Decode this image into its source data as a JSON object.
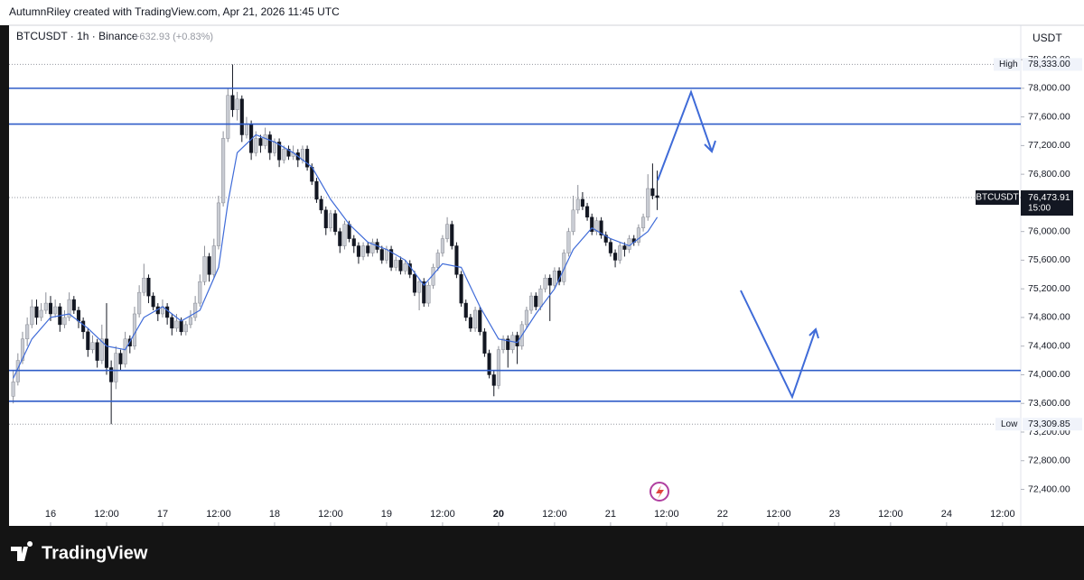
{
  "chart_data": {
    "type": "candlestick",
    "title": "AutumnRiley created with TradingView.com, Apr 21, 2026 11:45 UTC",
    "legend_symbol": "BTCUSDT · 1h · Binance",
    "legend_change": "+632.93 (+0.83%)",
    "currency": "USDT",
    "brand": "TradingView",
    "up_color": "#c9ccd3",
    "down_color": "#131722",
    "ma_color": "#3f6bd8",
    "level_color": "#2f5cc8",
    "xlim": [
      -8.9,
      207.9
    ],
    "ylim": [
      71890,
      78880
    ],
    "xticks": [
      {
        "value": 0,
        "label": "16"
      },
      {
        "value": 12,
        "label": "12:00"
      },
      {
        "value": 24,
        "label": "17"
      },
      {
        "value": 36,
        "label": "12:00"
      },
      {
        "value": 48,
        "label": "18"
      },
      {
        "value": 60,
        "label": "12:00"
      },
      {
        "value": 72,
        "label": "19"
      },
      {
        "value": 84,
        "label": "12:00"
      },
      {
        "value": 96,
        "label": "20",
        "bold": true
      },
      {
        "value": 108,
        "label": "12:00"
      },
      {
        "value": 120,
        "label": "21"
      },
      {
        "value": 132,
        "label": "12:00"
      },
      {
        "value": 144,
        "label": "22"
      },
      {
        "value": 156,
        "label": "12:00"
      },
      {
        "value": 168,
        "label": "23"
      },
      {
        "value": 180,
        "label": "12:00"
      },
      {
        "value": 192,
        "label": "24"
      },
      {
        "value": 204,
        "label": "12:00"
      }
    ],
    "yticks": [
      {
        "value": 78400,
        "label": "78,400.00"
      },
      {
        "value": 78000,
        "label": "78,000.00"
      },
      {
        "value": 77600,
        "label": "77,600.00"
      },
      {
        "value": 77200,
        "label": "77,200.00"
      },
      {
        "value": 76800,
        "label": "76,800.00"
      },
      {
        "value": 76400,
        "label": "76,400.00"
      },
      {
        "value": 76000,
        "label": "76,000.00"
      },
      {
        "value": 75600,
        "label": "75,600.00"
      },
      {
        "value": 75200,
        "label": "75,200.00"
      },
      {
        "value": 74800,
        "label": "74,800.00"
      },
      {
        "value": 74400,
        "label": "74,400.00"
      },
      {
        "value": 74000,
        "label": "74,000.00"
      },
      {
        "value": 73600,
        "label": "73,600.00"
      },
      {
        "value": 73200,
        "label": "73,200.00"
      },
      {
        "value": 72800,
        "label": "72,800.00"
      },
      {
        "value": 72400,
        "label": "72,400.00"
      }
    ],
    "levels": [
      78000,
      77500,
      74060,
      73630
    ],
    "last_price": {
      "symbol": "BTCUSDT",
      "value": 76473.91,
      "label": "76,473.91",
      "countdown": "15:00"
    },
    "high": {
      "text": "High",
      "value": 78333,
      "label": "78,333.00"
    },
    "low": {
      "text": "Low",
      "value": 73309.85,
      "label": "73,309.85"
    },
    "x": [
      -8,
      -7,
      -6,
      -5,
      -4,
      -3,
      -2,
      -1,
      0,
      1,
      2,
      3,
      4,
      5,
      6,
      7,
      8,
      9,
      10,
      11,
      12,
      13,
      14,
      15,
      16,
      17,
      18,
      19,
      20,
      21,
      22,
      23,
      24,
      25,
      26,
      27,
      28,
      29,
      30,
      31,
      32,
      33,
      34,
      35,
      36,
      37,
      38,
      39,
      40,
      41,
      42,
      43,
      44,
      45,
      46,
      47,
      48,
      49,
      50,
      51,
      52,
      53,
      54,
      55,
      56,
      57,
      58,
      59,
      60,
      61,
      62,
      63,
      64,
      65,
      66,
      67,
      68,
      69,
      70,
      71,
      72,
      73,
      74,
      75,
      76,
      77,
      78,
      79,
      80,
      81,
      82,
      83,
      84,
      85,
      86,
      87,
      88,
      89,
      90,
      91,
      92,
      93,
      94,
      95,
      96,
      97,
      98,
      99,
      100,
      101,
      102,
      103,
      104,
      105,
      106,
      107,
      108,
      109,
      110,
      111,
      112,
      113,
      114,
      115,
      116,
      117,
      118,
      119,
      120,
      121,
      122,
      123,
      124,
      125,
      126,
      127,
      128,
      129,
      130
    ],
    "candles": [
      [
        73700,
        74050,
        73600,
        73900
      ],
      [
        73900,
        74300,
        73850,
        74200
      ],
      [
        74200,
        74600,
        74150,
        74500
      ],
      [
        74500,
        74800,
        74400,
        74700
      ],
      [
        74700,
        75050,
        74650,
        74950
      ],
      [
        74950,
        75050,
        74700,
        74800
      ],
      [
        74800,
        75000,
        74750,
        74900
      ],
      [
        74900,
        75150,
        74850,
        75000
      ],
      [
        75000,
        75100,
        74750,
        74850
      ],
      [
        74850,
        75050,
        74800,
        74950
      ],
      [
        74950,
        75000,
        74600,
        74700
      ],
      [
        74700,
        74900,
        74650,
        74800
      ],
      [
        74800,
        75150,
        74750,
        75050
      ],
      [
        75050,
        75100,
        74850,
        74900
      ],
      [
        74900,
        74950,
        74650,
        74750
      ],
      [
        74750,
        74800,
        74500,
        74600
      ],
      [
        74600,
        74650,
        74250,
        74350
      ],
      [
        74350,
        74550,
        74300,
        74450
      ],
      [
        74450,
        74500,
        74100,
        74200
      ],
      [
        74200,
        74700,
        74150,
        74500
      ],
      [
        74500,
        75000,
        74000,
        74100
      ],
      [
        74100,
        74200,
        73309.85,
        73900
      ],
      [
        73900,
        74400,
        73800,
        74300
      ],
      [
        74300,
        74350,
        74050,
        74150
      ],
      [
        74150,
        74600,
        74100,
        74500
      ],
      [
        74500,
        74550,
        74300,
        74400
      ],
      [
        74400,
        74950,
        74350,
        74850
      ],
      [
        74850,
        75250,
        74800,
        75150
      ],
      [
        75150,
        75550,
        75100,
        75350
      ],
      [
        75350,
        75400,
        75000,
        75100
      ],
      [
        75100,
        75150,
        74900,
        74950
      ],
      [
        74950,
        75000,
        74750,
        74850
      ],
      [
        74850,
        75050,
        74800,
        74950
      ],
      [
        74950,
        75000,
        74700,
        74800
      ],
      [
        74800,
        74850,
        74550,
        74650
      ],
      [
        74650,
        74850,
        74600,
        74750
      ],
      [
        74750,
        74800,
        74550,
        74600
      ],
      [
        74600,
        74750,
        74550,
        74700
      ],
      [
        74700,
        74900,
        74650,
        74800
      ],
      [
        74800,
        75100,
        74750,
        75000
      ],
      [
        75000,
        75400,
        74950,
        75300
      ],
      [
        75300,
        75800,
        75250,
        75650
      ],
      [
        75650,
        75700,
        75300,
        75400
      ],
      [
        75400,
        75900,
        75350,
        75800
      ],
      [
        75800,
        76500,
        75750,
        76400
      ],
      [
        76400,
        77400,
        76350,
        77300
      ],
      [
        77300,
        78000,
        77250,
        77900
      ],
      [
        77900,
        78333,
        77600,
        77700
      ],
      [
        77700,
        77950,
        77550,
        77850
      ],
      [
        77850,
        77900,
        77250,
        77350
      ],
      [
        77350,
        77600,
        77300,
        77500
      ],
      [
        77500,
        77550,
        77000,
        77100
      ],
      [
        77100,
        77400,
        77050,
        77300
      ],
      [
        77300,
        77350,
        77100,
        77200
      ],
      [
        77200,
        77450,
        77150,
        77350
      ],
      [
        77350,
        77400,
        77000,
        77100
      ],
      [
        77100,
        77300,
        77050,
        77250
      ],
      [
        77250,
        77300,
        76900,
        77000
      ],
      [
        77000,
        77200,
        76950,
        77150
      ],
      [
        77150,
        77200,
        77000,
        77050
      ],
      [
        77050,
        77200,
        77000,
        77100
      ],
      [
        77100,
        77150,
        76900,
        77000
      ],
      [
        77000,
        77200,
        76950,
        77150
      ],
      [
        77150,
        77200,
        76850,
        76900
      ],
      [
        76900,
        76950,
        76650,
        76700
      ],
      [
        76700,
        76750,
        76400,
        76450
      ],
      [
        76450,
        76500,
        76250,
        76300
      ],
      [
        76300,
        76350,
        75950,
        76050
      ],
      [
        76050,
        76300,
        76000,
        76250
      ],
      [
        76250,
        76300,
        75950,
        76000
      ],
      [
        76000,
        76050,
        75700,
        75800
      ],
      [
        75800,
        76150,
        75750,
        76100
      ],
      [
        76100,
        76150,
        75850,
        75900
      ],
      [
        75900,
        75950,
        75700,
        75800
      ],
      [
        75800,
        75850,
        75550,
        75650
      ],
      [
        75650,
        75850,
        75600,
        75800
      ],
      [
        75800,
        75850,
        75650,
        75700
      ],
      [
        75700,
        75900,
        75650,
        75850
      ],
      [
        75850,
        75900,
        75700,
        75750
      ],
      [
        75750,
        75800,
        75550,
        75600
      ],
      [
        75600,
        75800,
        75550,
        75750
      ],
      [
        75750,
        75800,
        75450,
        75500
      ],
      [
        75500,
        75650,
        75450,
        75600
      ],
      [
        75600,
        75650,
        75400,
        75450
      ],
      [
        75450,
        75600,
        75400,
        75550
      ],
      [
        75550,
        75600,
        75350,
        75400
      ],
      [
        75400,
        75450,
        75100,
        75150
      ],
      [
        75150,
        75350,
        74900,
        75300
      ],
      [
        75300,
        75350,
        74950,
        75000
      ],
      [
        75000,
        75300,
        74950,
        75250
      ],
      [
        75250,
        75550,
        75200,
        75500
      ],
      [
        75500,
        75750,
        75450,
        75700
      ],
      [
        75700,
        75950,
        75650,
        75900
      ],
      [
        75900,
        76200,
        75850,
        76100
      ],
      [
        76100,
        76150,
        75750,
        75800
      ],
      [
        75800,
        75850,
        75350,
        75400
      ],
      [
        75400,
        75450,
        74950,
        75000
      ],
      [
        75000,
        75050,
        74750,
        74800
      ],
      [
        74800,
        74850,
        74600,
        74650
      ],
      [
        74650,
        74950,
        74600,
        74900
      ],
      [
        74900,
        74950,
        74550,
        74600
      ],
      [
        74600,
        74650,
        74250,
        74300
      ],
      [
        74300,
        74350,
        73950,
        74000
      ],
      [
        74000,
        74050,
        73700,
        73850
      ],
      [
        73850,
        74400,
        73800,
        74350
      ],
      [
        74350,
        74550,
        74300,
        74500
      ],
      [
        74500,
        74550,
        74100,
        74350
      ],
      [
        74350,
        74600,
        74300,
        74550
      ],
      [
        74550,
        74600,
        74150,
        74400
      ],
      [
        74400,
        74750,
        74350,
        74700
      ],
      [
        74700,
        74950,
        74650,
        74900
      ],
      [
        74900,
        75150,
        74850,
        75100
      ],
      [
        75100,
        75150,
        74900,
        74950
      ],
      [
        74950,
        75250,
        74900,
        75200
      ],
      [
        75200,
        75400,
        75150,
        75350
      ],
      [
        75350,
        75400,
        74750,
        75250
      ],
      [
        75250,
        75500,
        75200,
        75450
      ],
      [
        75450,
        75500,
        75250,
        75300
      ],
      [
        75300,
        75750,
        75250,
        75700
      ],
      [
        75700,
        76050,
        75650,
        76000
      ],
      [
        76000,
        76500,
        75950,
        76300
      ],
      [
        76300,
        76650,
        76250,
        76450
      ],
      [
        76450,
        76550,
        76300,
        76350
      ],
      [
        76350,
        76400,
        76150,
        76200
      ],
      [
        76200,
        76250,
        75950,
        76000
      ],
      [
        76000,
        76200,
        75950,
        76150
      ],
      [
        76150,
        76200,
        75900,
        75950
      ],
      [
        75950,
        76000,
        75800,
        75850
      ],
      [
        75850,
        75900,
        75650,
        75700
      ],
      [
        75700,
        75750,
        75500,
        75600
      ],
      [
        75600,
        75850,
        75550,
        75800
      ],
      [
        75800,
        75850,
        75650,
        75750
      ],
      [
        75750,
        75950,
        75700,
        75900
      ],
      [
        75900,
        75950,
        75800,
        75850
      ],
      [
        75850,
        76100,
        75800,
        76050
      ],
      [
        76050,
        76250,
        76000,
        76200
      ],
      [
        76200,
        76800,
        76150,
        76600
      ],
      [
        76600,
        76950,
        76450,
        76500
      ],
      [
        76500,
        76850,
        76300,
        76473.91
      ]
    ],
    "ma": {
      "x": [
        -8,
        -4,
        0,
        4,
        8,
        12,
        16,
        20,
        24,
        28,
        32,
        36,
        38,
        40,
        44,
        48,
        52,
        56,
        60,
        64,
        68,
        72,
        76,
        80,
        84,
        88,
        92,
        96,
        100,
        104,
        108,
        112,
        116,
        120,
        124,
        128,
        130
      ],
      "values": [
        73950,
        74500,
        74800,
        74850,
        74650,
        74400,
        74350,
        74800,
        74950,
        74750,
        74900,
        75500,
        76400,
        77100,
        77350,
        77250,
        77100,
        76900,
        76450,
        76100,
        75850,
        75750,
        75600,
        75250,
        75550,
        75500,
        74950,
        74500,
        74450,
        74850,
        75200,
        75750,
        76050,
        75900,
        75800,
        76000,
        76200
      ]
    }
  }
}
